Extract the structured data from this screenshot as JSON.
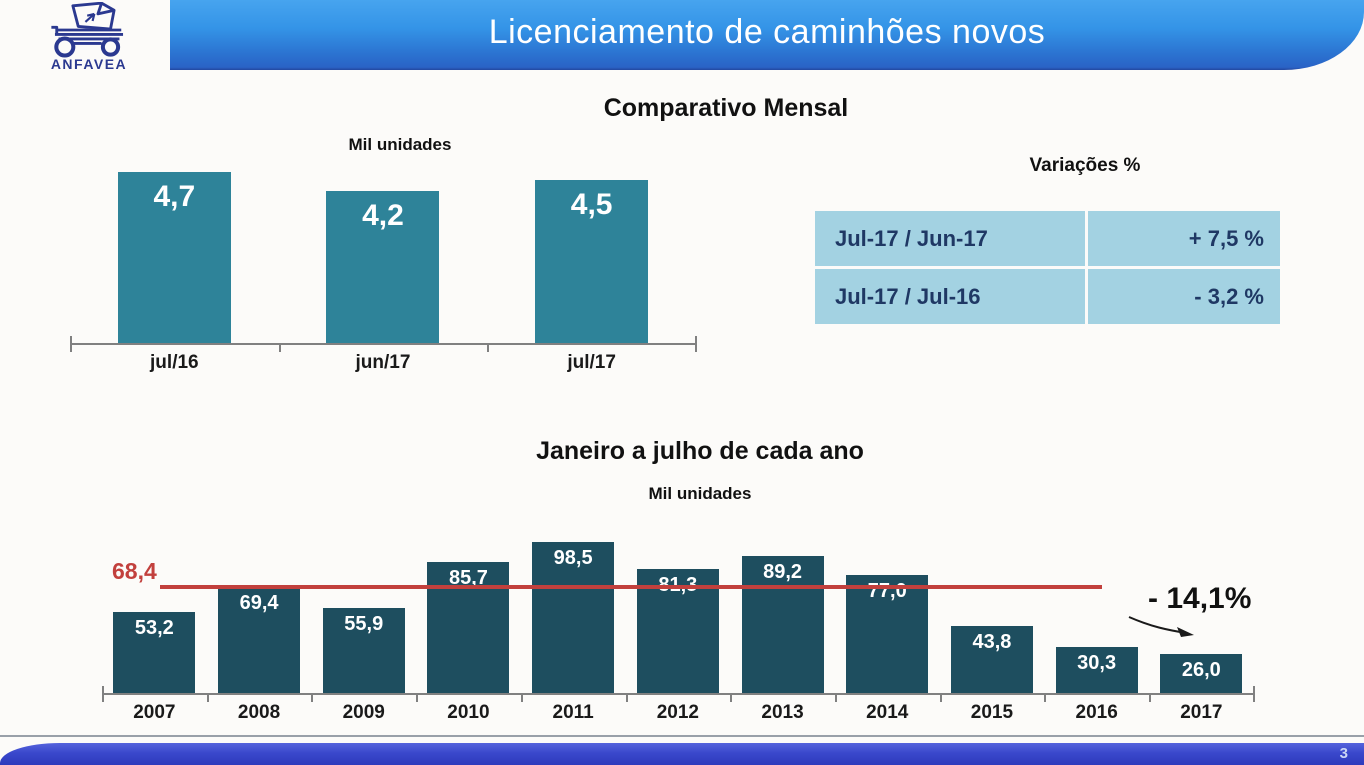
{
  "header": {
    "title": "Licenciamento de caminhões novos",
    "logo_text": "ANFAVEA"
  },
  "monthly_section": {
    "title": "Comparativo Mensal",
    "units_label": "Mil unidades",
    "variations_title": "Variações %",
    "variations_rows": [
      {
        "label": "Jul-17 / Jun-17",
        "value": "+ 7,5 %"
      },
      {
        "label": "Jul-17 / Jul-16",
        "value": "- 3,2 %"
      }
    ]
  },
  "annual_section": {
    "title": "Janeiro a julho de cada ano",
    "units_label": "Mil unidades",
    "reference_label": "68,4",
    "annotation": "- 14,1%"
  },
  "footer": {
    "page_number": "3"
  },
  "colors": {
    "monthly_bar": "#2e8399",
    "annual_bar": "#1e4e5f",
    "table_bg": "#a3d2e2",
    "table_text": "#1f3864",
    "reference_line": "#c2403d",
    "logo_blue": "#2b3990"
  },
  "chart_data": [
    {
      "type": "bar",
      "title": "Comparativo Mensal",
      "subtitle": "Mil unidades",
      "categories": [
        "jul/16",
        "jun/17",
        "jul/17"
      ],
      "values": [
        4.7,
        4.2,
        4.5
      ],
      "value_labels": [
        "4,7",
        "4,2",
        "4,5"
      ],
      "ylim": [
        0,
        5
      ],
      "bar_color": "#2e8399",
      "value_label_position": "inside-top",
      "grid": false,
      "legend": false
    },
    {
      "type": "bar",
      "title": "Janeiro a julho de cada ano",
      "subtitle": "Mil unidades",
      "categories": [
        "2007",
        "2008",
        "2009",
        "2010",
        "2011",
        "2012",
        "2013",
        "2014",
        "2015",
        "2016",
        "2017"
      ],
      "values": [
        53.2,
        69.4,
        55.9,
        85.7,
        98.5,
        81.3,
        89.2,
        77.0,
        43.8,
        30.3,
        26.0
      ],
      "value_labels": [
        "53,2",
        "69,4",
        "55,9",
        "85,7",
        "98,5",
        "81,3",
        "89,2",
        "77,0",
        "43,8",
        "30,3",
        "26,0"
      ],
      "ylim": [
        0,
        105
      ],
      "bar_color": "#1e4e5f",
      "value_label_position": "inside-top",
      "grid": false,
      "legend": false,
      "reference_line": {
        "value": 68.4,
        "label": "68,4",
        "color": "#c2403d"
      },
      "annotation": {
        "text": "- 14,1%"
      }
    }
  ]
}
